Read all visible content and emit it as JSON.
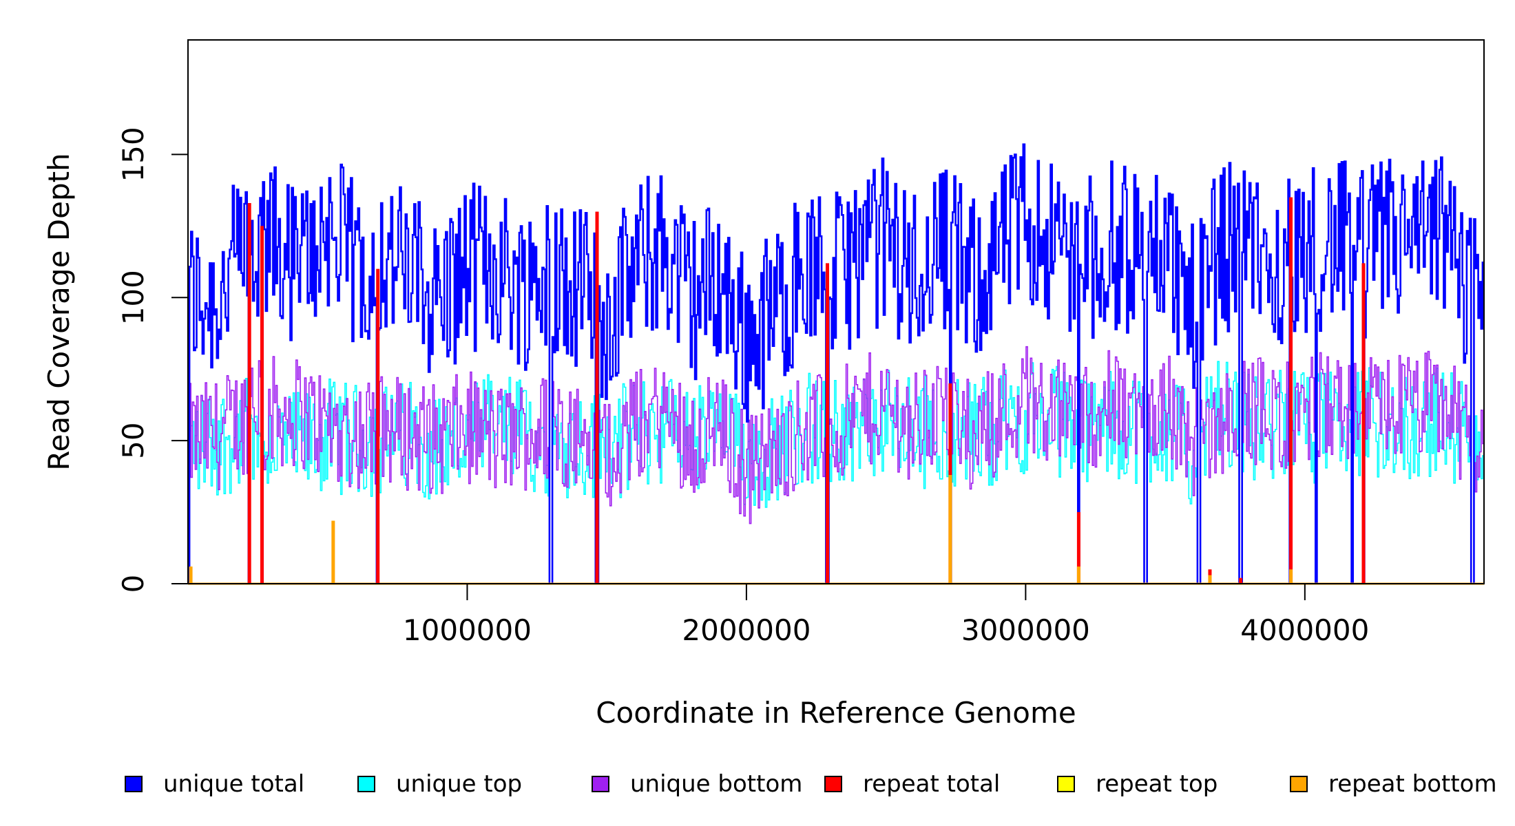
{
  "chart_data": {
    "type": "line",
    "xlabel": "Coordinate in Reference Genome",
    "ylabel": "Read Coverage Depth",
    "xlim": [
      1,
      4641652
    ],
    "ylim": [
      0,
      190
    ],
    "x_ticks": [
      1000000,
      2000000,
      3000000,
      4000000
    ],
    "x_tick_labels": [
      "1000000",
      "2000000",
      "3000000",
      "4000000"
    ],
    "y_ticks": [
      0,
      50,
      100,
      150
    ],
    "y_tick_labels": [
      "0",
      "50",
      "100",
      "150"
    ],
    "grid": false,
    "legend_position": "bottom",
    "series": [
      {
        "name": "unique total",
        "color": "#0000FF",
        "x": [
          0,
          100000,
          200000,
          300000,
          400000,
          500000,
          600000,
          700000,
          800000,
          900000,
          1000000,
          1100000,
          1200000,
          1300000,
          1400000,
          1500000,
          1600000,
          1700000,
          1800000,
          1900000,
          2000000,
          2100000,
          2200000,
          2300000,
          2400000,
          2500000,
          2600000,
          2700000,
          2800000,
          2900000,
          3000000,
          3100000,
          3200000,
          3300000,
          3400000,
          3500000,
          3600000,
          3700000,
          3800000,
          3900000,
          4000000,
          4100000,
          4200000,
          4300000,
          4400000,
          4500000,
          4600000
        ],
        "y": [
          100,
          100,
          115,
          118,
          110,
          125,
          110,
          115,
          108,
          100,
          110,
          112,
          104,
          110,
          104,
          92,
          110,
          118,
          100,
          107,
          85,
          95,
          110,
          105,
          115,
          120,
          108,
          120,
          105,
          115,
          128,
          120,
          112,
          118,
          115,
          120,
          95,
          118,
          118,
          113,
          115,
          120,
          115,
          120,
          118,
          122,
          100
        ]
      },
      {
        "name": "unique top",
        "color": "#00FFFF",
        "x": [
          0,
          100000,
          200000,
          300000,
          400000,
          500000,
          600000,
          700000,
          800000,
          900000,
          1000000,
          1100000,
          1200000,
          1300000,
          1400000,
          1500000,
          1600000,
          1700000,
          1800000,
          1900000,
          2000000,
          2100000,
          2200000,
          2300000,
          2400000,
          2500000,
          2600000,
          2700000,
          2800000,
          2900000,
          3000000,
          3100000,
          3200000,
          3300000,
          3400000,
          3500000,
          3600000,
          3700000,
          3800000,
          3900000,
          4000000,
          4100000,
          4200000,
          4300000,
          4400000,
          4500000,
          4600000
        ],
        "y": [
          48,
          50,
          52,
          50,
          47,
          52,
          50,
          50,
          52,
          48,
          50,
          55,
          52,
          50,
          50,
          47,
          52,
          55,
          50,
          52,
          45,
          47,
          55,
          52,
          55,
          55,
          52,
          55,
          52,
          55,
          58,
          57,
          55,
          55,
          55,
          55,
          45,
          60,
          55,
          55,
          55,
          55,
          55,
          57,
          55,
          57,
          50
        ]
      },
      {
        "name": "unique bottom",
        "color": "#A020F0",
        "x": [
          0,
          100000,
          200000,
          300000,
          400000,
          500000,
          600000,
          700000,
          800000,
          900000,
          1000000,
          1100000,
          1200000,
          1300000,
          1400000,
          1500000,
          1600000,
          1700000,
          1800000,
          1900000,
          2000000,
          2100000,
          2200000,
          2300000,
          2400000,
          2500000,
          2600000,
          2700000,
          2800000,
          2900000,
          3000000,
          3100000,
          3200000,
          3300000,
          3400000,
          3500000,
          3600000,
          3700000,
          3800000,
          3900000,
          4000000,
          4100000,
          4200000,
          4300000,
          4400000,
          4500000,
          4600000
        ],
        "y": [
          50,
          52,
          58,
          60,
          60,
          55,
          52,
          55,
          52,
          50,
          55,
          50,
          52,
          55,
          52,
          45,
          55,
          60,
          50,
          55,
          40,
          45,
          55,
          52,
          60,
          62,
          55,
          62,
          52,
          58,
          65,
          62,
          58,
          62,
          60,
          62,
          50,
          58,
          62,
          58,
          60,
          62,
          60,
          62,
          62,
          62,
          50
        ]
      },
      {
        "name": "repeat total",
        "color": "#FF0000",
        "x": [
          220000,
          265000,
          680000,
          1465000,
          2290000,
          2730000,
          3190000,
          3660000,
          3770000,
          3950000,
          4210000
        ],
        "y": [
          133,
          125,
          110,
          130,
          112,
          70,
          25,
          5,
          2,
          135,
          112
        ]
      },
      {
        "name": "repeat top",
        "color": "#FFFF00",
        "x": [],
        "y": []
      },
      {
        "name": "repeat bottom",
        "color": "#FFA500",
        "x": [
          10000,
          520000,
          2730000,
          3190000,
          3660000,
          3950000
        ],
        "y": [
          6,
          22,
          38,
          6,
          3,
          5
        ]
      }
    ]
  },
  "legend": {
    "items": [
      {
        "label": "unique total",
        "color": "#0000FF"
      },
      {
        "label": "unique top",
        "color": "#00FFFF"
      },
      {
        "label": "unique bottom",
        "color": "#A020F0"
      },
      {
        "label": "repeat total",
        "color": "#FF0000"
      },
      {
        "label": "repeat top",
        "color": "#FFFF00"
      },
      {
        "label": "repeat bottom",
        "color": "#FFA500"
      }
    ]
  }
}
